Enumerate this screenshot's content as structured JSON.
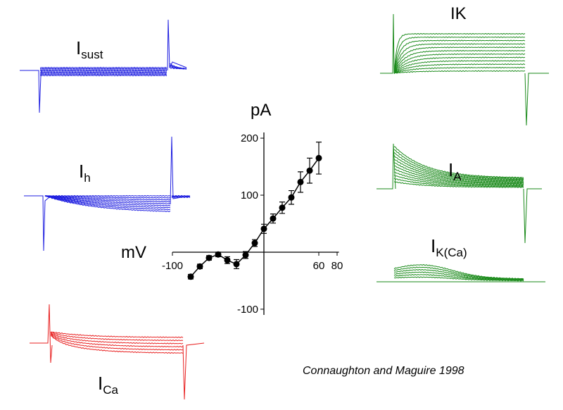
{
  "chart_data": {
    "type": "line",
    "x_label": "mV",
    "y_label": "pA",
    "x": [
      -80,
      -70,
      -60,
      -50,
      -40,
      -30,
      -20,
      -10,
      0,
      10,
      20,
      30,
      40,
      50,
      60
    ],
    "series": [
      {
        "name": null,
        "color": "#000000",
        "values": [
          -43,
          -25,
          -10,
          -4,
          -14,
          -21,
          -5,
          16,
          41,
          59,
          78,
          96,
          123,
          143,
          165
        ],
        "errors": [
          4,
          4,
          4,
          4,
          6,
          8,
          6,
          6,
          8,
          8,
          10,
          12,
          18,
          22,
          28
        ]
      }
    ],
    "xlim": [
      -100,
      82
    ],
    "xticks": [
      -100,
      60,
      80
    ],
    "ylim": [
      -110,
      210
    ],
    "yticks": [
      -100,
      100,
      200
    ]
  },
  "trace_labels": [
    {
      "main": "I",
      "sub": "sust"
    },
    {
      "main": "I",
      "sub": "h"
    },
    {
      "main": "I",
      "sub": "Ca"
    },
    {
      "main": "IK",
      "sub": null
    },
    {
      "main": "I",
      "sub": "A"
    },
    {
      "main": "I",
      "sub": "K(Ca)"
    }
  ],
  "citation": "Connaughton and Maguire 1998"
}
